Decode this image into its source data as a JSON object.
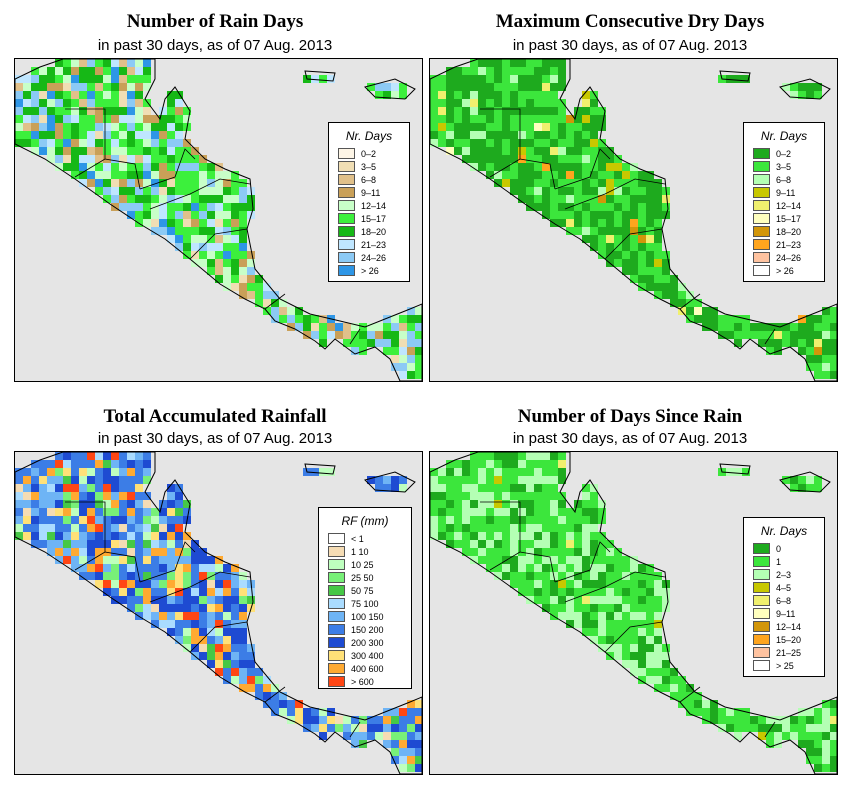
{
  "panels": [
    {
      "title": "Number of Rain Days",
      "subtitle": "in past 30 days, as of  07 Aug. 2013",
      "legend": {
        "title": "Nr. Days",
        "items": [
          {
            "label": "0–2",
            "color": "#fdf5e6"
          },
          {
            "label": "3–5",
            "color": "#f0deb4"
          },
          {
            "label": "6–8",
            "color": "#e0c08a"
          },
          {
            "label": "9–11",
            "color": "#c9a058"
          },
          {
            "label": "12–14",
            "color": "#c8ffc8"
          },
          {
            "label": "15–17",
            "color": "#3cf03c"
          },
          {
            "label": "18–20",
            "color": "#16b816"
          },
          {
            "label": "21–23",
            "color": "#bfe6ff"
          },
          {
            "label": "24–26",
            "color": "#8ccaf5"
          },
          {
            "label": "> 26",
            "color": "#2e96e6"
          }
        ]
      }
    },
    {
      "title": "Maximum Consecutive Dry Days",
      "subtitle": "in past 30 days, as of  07 Aug. 2013",
      "legend": {
        "title": "Nr. Days",
        "items": [
          {
            "label": "0–2",
            "color": "#1eaa1e"
          },
          {
            "label": "3–5",
            "color": "#3ce63c"
          },
          {
            "label": "6–8",
            "color": "#b4ffb4"
          },
          {
            "label": "9–11",
            "color": "#c8c800"
          },
          {
            "label": "12–14",
            "color": "#f0f06e"
          },
          {
            "label": "15–17",
            "color": "#ffffbe"
          },
          {
            "label": "18–20",
            "color": "#d2960a"
          },
          {
            "label": "21–23",
            "color": "#ffa51e"
          },
          {
            "label": "24–26",
            "color": "#ffc3a0"
          },
          {
            "label": "> 26",
            "color": "#ffffff"
          }
        ]
      }
    },
    {
      "title": "Total Accumulated Rainfall",
      "subtitle": "in past 30 days, as of  07 Aug. 2013",
      "legend": {
        "title": "RF (mm)",
        "items": [
          {
            "label": "< 1",
            "color": "#ffffff"
          },
          {
            "label": "1  10",
            "color": "#f5dcb4"
          },
          {
            "label": "10  25",
            "color": "#beffbe"
          },
          {
            "label": "25  50",
            "color": "#78f078"
          },
          {
            "label": "50  75",
            "color": "#46c846"
          },
          {
            "label": "75  100",
            "color": "#aadcff"
          },
          {
            "label": "100  150",
            "color": "#6eb4f5"
          },
          {
            "label": "150  200",
            "color": "#3c7de6"
          },
          {
            "label": "200  300",
            "color": "#1e4bd2"
          },
          {
            "label": "300  400",
            "color": "#ffe178"
          },
          {
            "label": "400  600",
            "color": "#ffaa32"
          },
          {
            "label": "> 600",
            "color": "#ff4614"
          }
        ]
      }
    },
    {
      "title": "Number of Days Since Rain",
      "subtitle": "in past 30 days, as of  07 Aug. 2013",
      "legend": {
        "title": "Nr. Days",
        "items": [
          {
            "label": "0",
            "color": "#1eaa1e"
          },
          {
            "label": "1",
            "color": "#3ce63c"
          },
          {
            "label": "2–3",
            "color": "#b4ffb4"
          },
          {
            "label": "4–5",
            "color": "#c8c800"
          },
          {
            "label": "6–8",
            "color": "#f0f06e"
          },
          {
            "label": "9–11",
            "color": "#ffffbe"
          },
          {
            "label": "12–14",
            "color": "#d2960a"
          },
          {
            "label": "15–20",
            "color": "#ffa51e"
          },
          {
            "label": "21–25",
            "color": "#ffc3a0"
          },
          {
            "label": "> 25",
            "color": "#ffffff"
          }
        ]
      }
    }
  ]
}
